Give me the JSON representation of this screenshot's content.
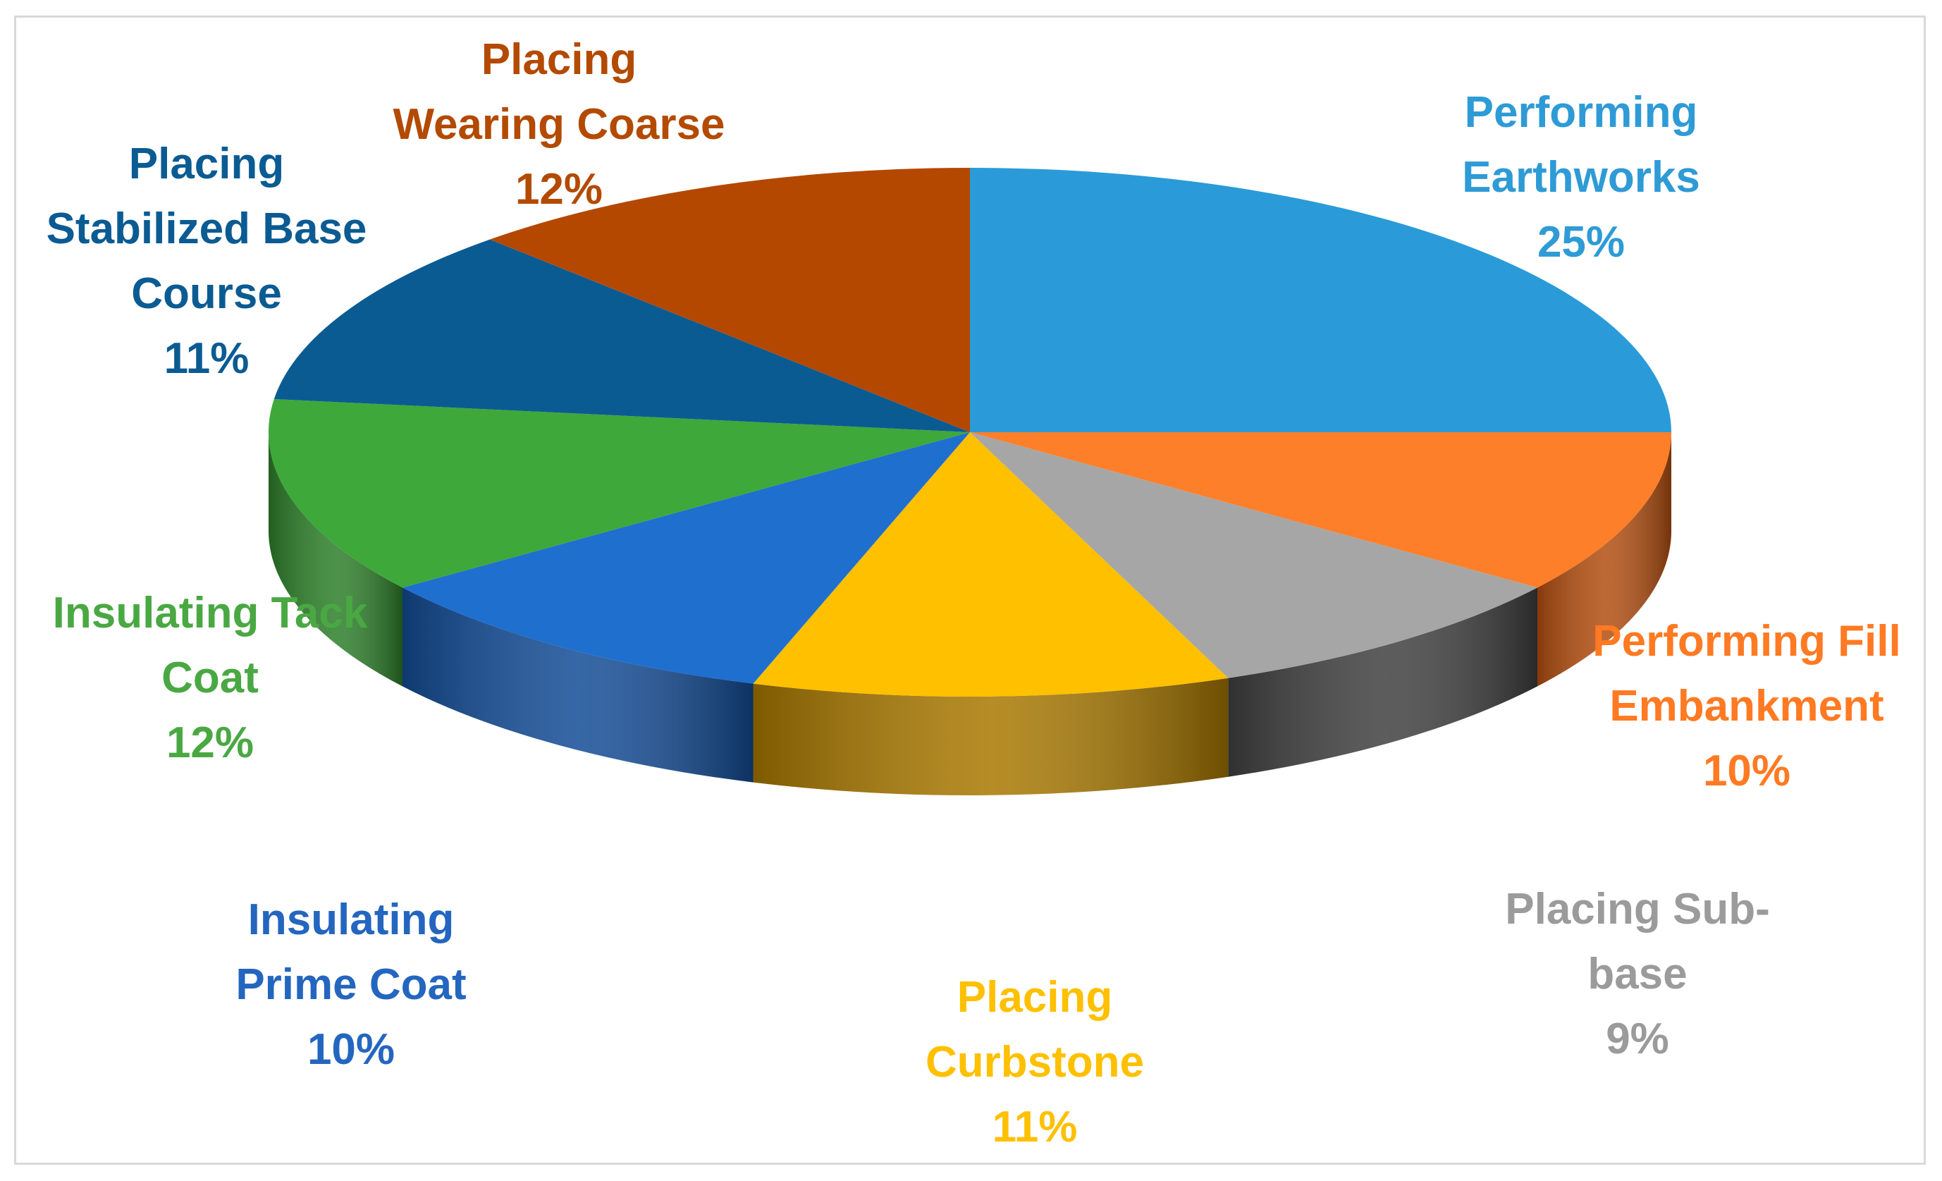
{
  "chart_data": {
    "type": "pie",
    "style": "3d",
    "legend": "none",
    "slices": [
      {
        "label_lines": [
          "Performing",
          "Earthworks"
        ],
        "percent_label": "25%",
        "value": 25,
        "color": "#2a9bd8"
      },
      {
        "label_lines": [
          "Performing Fill",
          "Embankment"
        ],
        "percent_label": "10%",
        "value": 10,
        "color": "#fe7f2a"
      },
      {
        "label_lines": [
          "Placing Sub-",
          "base"
        ],
        "percent_label": "9%",
        "value": 9,
        "color": "#a6a6a6"
      },
      {
        "label_lines": [
          "Placing",
          "Curbstone"
        ],
        "percent_label": "11%",
        "value": 11,
        "color": "#ffc000"
      },
      {
        "label_lines": [
          "Insulating",
          "Prime Coat"
        ],
        "percent_label": "10%",
        "value": 10,
        "color": "#1f6fcf"
      },
      {
        "label_lines": [
          "Insulating Tack",
          "Coat"
        ],
        "percent_label": "12%",
        "value": 12,
        "color": "#3ea83a"
      },
      {
        "label_lines": [
          "Placing",
          "Stabilized Base",
          "Course"
        ],
        "percent_label": "11%",
        "value": 11,
        "color": "#0b5b93"
      },
      {
        "label_lines": [
          "Placing",
          "Wearing Coarse"
        ],
        "percent_label": "12%",
        "value": 12,
        "color": "#b44800"
      }
    ],
    "side_colors": [
      "#15699a",
      "#b34e10",
      "#404040",
      "#a87800",
      "#134c96",
      "#2d7f2a",
      "#063c63",
      "#7a2e00"
    ],
    "label_colors": [
      "#2e9bd6",
      "#ff7a22",
      "#9b9b9b",
      "#ffc000",
      "#2466bf",
      "#4aa843",
      "#0b5b93",
      "#b34a00"
    ]
  }
}
